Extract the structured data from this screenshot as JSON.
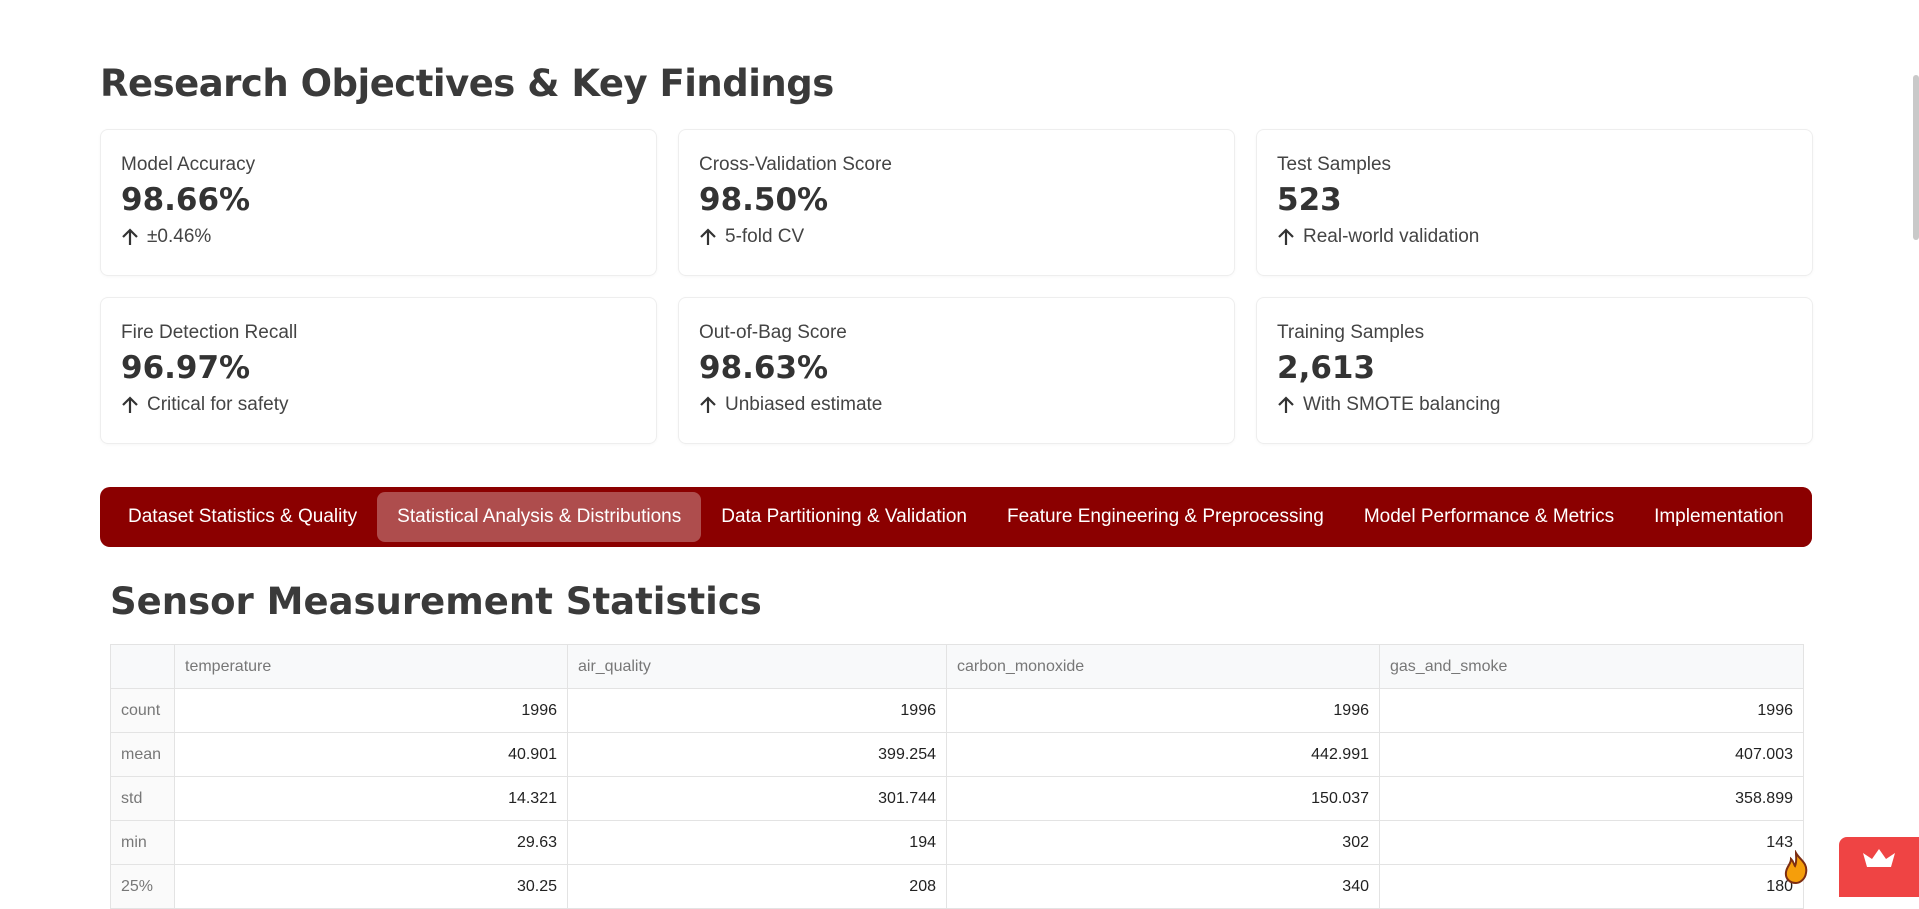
{
  "header": {
    "title": "Research Objectives & Key Findings"
  },
  "metrics": [
    {
      "label": "Model Accuracy",
      "value": "98.66%",
      "note": "±0.46%"
    },
    {
      "label": "Cross-Validation Score",
      "value": "98.50%",
      "note": "5-fold CV"
    },
    {
      "label": "Test Samples",
      "value": "523",
      "note": "Real-world validation"
    },
    {
      "label": "Fire Detection Recall",
      "value": "96.97%",
      "note": "Critical for safety"
    },
    {
      "label": "Out-of-Bag Score",
      "value": "98.63%",
      "note": "Unbiased estimate"
    },
    {
      "label": "Training Samples",
      "value": "2,613",
      "note": "With SMOTE balancing"
    }
  ],
  "tabs": [
    "Dataset Statistics & Quality",
    "Statistical Analysis & Distributions",
    "Data Partitioning & Validation",
    "Feature Engineering & Preprocessing",
    "Model Performance & Metrics",
    "Implementation"
  ],
  "active_tab": 1,
  "section": {
    "title": "Sensor Measurement Statistics"
  },
  "table": {
    "columns": [
      "temperature",
      "air_quality",
      "carbon_monoxide",
      "gas_and_smoke"
    ],
    "rows": [
      [
        "count",
        "1996",
        "1996",
        "1996",
        "1996"
      ],
      [
        "mean",
        "40.901",
        "399.254",
        "442.991",
        "407.003"
      ],
      [
        "std",
        "14.321",
        "301.744",
        "150.037",
        "358.899"
      ],
      [
        "min",
        "29.63",
        "194",
        "302",
        "143"
      ],
      [
        "25%",
        "30.25",
        "208",
        "340",
        "180"
      ]
    ]
  }
}
